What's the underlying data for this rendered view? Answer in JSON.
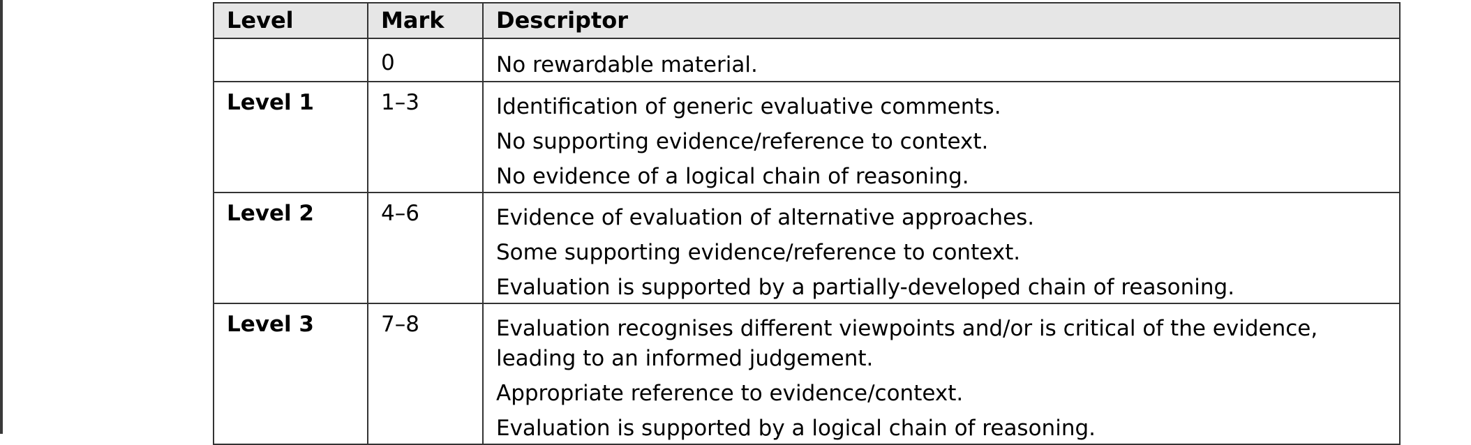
{
  "header": {
    "level": "Level",
    "mark": "Mark",
    "descriptor": "Descriptor"
  },
  "rows": [
    {
      "level": "",
      "mark": "0",
      "descriptors": [
        "No rewardable material."
      ]
    },
    {
      "level": "Level 1",
      "mark": "1–3",
      "descriptors": [
        "Identification of generic evaluative comments.",
        "No supporting evidence/reference to context.",
        "No evidence of a logical chain of reasoning."
      ]
    },
    {
      "level": "Level 2",
      "mark": "4–6",
      "descriptors": [
        "Evidence of evaluation of alternative approaches.",
        "Some supporting evidence/reference to context.",
        "Evaluation is supported by a partially-developed chain of reasoning."
      ]
    },
    {
      "level": "Level 3",
      "mark": "7–8",
      "descriptors": [
        "Evaluation recognises different viewpoints and/or is critical of the evidence, leading to an informed judgement.",
        "Appropriate reference to evidence/context.",
        "Evaluation is supported by a logical chain of reasoning."
      ]
    }
  ]
}
